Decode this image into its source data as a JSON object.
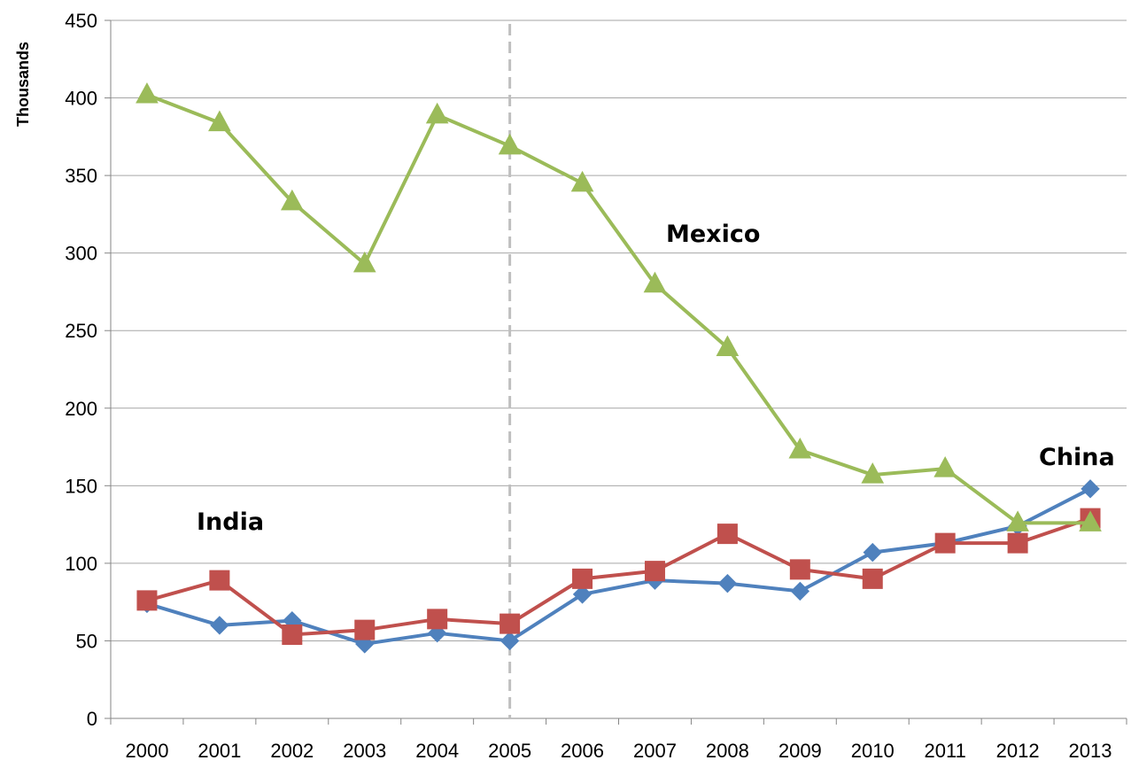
{
  "chart_data": {
    "type": "line",
    "ylabel": "Thousands",
    "ylim": [
      0,
      450
    ],
    "yticks": [
      0,
      50,
      100,
      150,
      200,
      250,
      300,
      350,
      400,
      450
    ],
    "grid": "horizontal",
    "categories": [
      "2000",
      "2001",
      "2002",
      "2003",
      "2004",
      "2005",
      "2006",
      "2007",
      "2008",
      "2009",
      "2010",
      "2011",
      "2012",
      "2013"
    ],
    "series": [
      {
        "key": "china",
        "color": "#4F81BD",
        "marker": "diamond",
        "values": [
          74,
          60,
          63,
          48,
          55,
          50,
          80,
          89,
          87,
          82,
          107,
          113,
          124,
          148
        ]
      },
      {
        "key": "india",
        "color": "#C0504D",
        "marker": "square",
        "values": [
          76,
          89,
          54,
          57,
          64,
          61,
          90,
          95,
          119,
          96,
          90,
          113,
          113,
          129
        ]
      },
      {
        "key": "mexico",
        "color": "#9BBB59",
        "marker": "triangle",
        "values": [
          402,
          384,
          333,
          293,
          389,
          369,
          345,
          280,
          239,
          173,
          157,
          161,
          126,
          126
        ]
      }
    ],
    "reference_line": {
      "category": "2005",
      "style": "dashed",
      "color": "#BFBFBF"
    },
    "annotations": [
      {
        "text": "Mexico",
        "series": "mexico"
      },
      {
        "text": "China",
        "series": "china"
      },
      {
        "text": "India",
        "series": "india"
      }
    ]
  }
}
